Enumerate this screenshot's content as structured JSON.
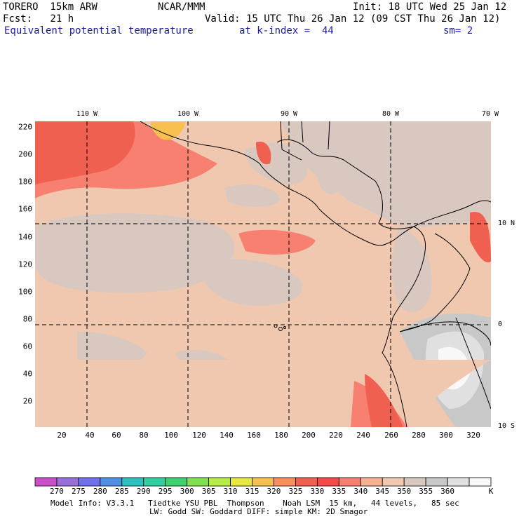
{
  "header": {
    "model": "TORERO  15km ARW",
    "org": "NCAR/MMM",
    "init": "Init: 18 UTC Wed 25 Jan 12",
    "fcst": "Fcst:   21 h",
    "valid": "Valid: 15 UTC Thu 26 Jan 12 (09 CST Thu 26 Jan 12)",
    "field": "Equivalent potential temperature",
    "level": "at k-index =  44",
    "smooth": "sm= 2"
  },
  "map": {
    "lon_labels": [
      "110 W",
      "100 W",
      "90 W",
      "80 W",
      "70 W"
    ],
    "lat_labels": [
      "10 N",
      "0",
      "10 S"
    ],
    "x_ticks": [
      "20",
      "40",
      "60",
      "80",
      "100",
      "120",
      "140",
      "160",
      "180",
      "200",
      "220",
      "240",
      "260",
      "280",
      "300",
      "320"
    ],
    "y_ticks": [
      "220",
      "200",
      "180",
      "160",
      "140",
      "120",
      "100",
      "80",
      "60",
      "40",
      "20"
    ]
  },
  "colorbar": {
    "levels": [
      "270",
      "275",
      "280",
      "285",
      "290",
      "295",
      "300",
      "305",
      "310",
      "315",
      "320",
      "325",
      "330",
      "335",
      "340",
      "345",
      "350",
      "355",
      "360"
    ],
    "colors": [
      "#c850c8",
      "#9870d8",
      "#7070e8",
      "#5090e0",
      "#30c0c0",
      "#30d0a0",
      "#40d070",
      "#80e050",
      "#b8ec48",
      "#e8e840",
      "#f8c050",
      "#f89060",
      "#f06050",
      "#f84848",
      "#f88070",
      "#f8b090",
      "#f0c8b0",
      "#d8c8c0",
      "#c8c8c8",
      "#e0e0e0",
      "#f8f8f8"
    ],
    "unit": "K"
  },
  "footer": {
    "line1": "Model Info: V3.3.1   Tiedtke YSU PBL  Thompson    Noah LSM  15 km,   44 levels,   85 sec",
    "line2": "LW: Godd SW: Goddard DIFF: simple KM: 2D Smagor"
  }
}
